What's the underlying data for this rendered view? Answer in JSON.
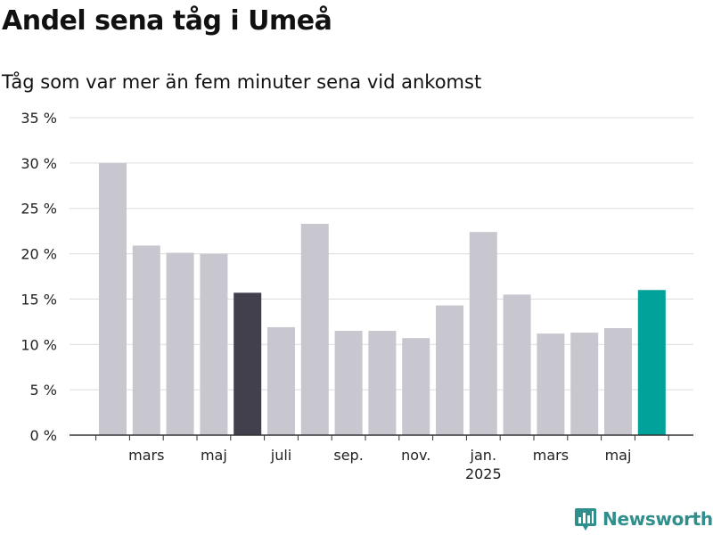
{
  "title": "Andel sena tåg i Umeå",
  "subtitle": "Tåg som var mer än fem minuter sena vid ankomst",
  "brand": {
    "name": "Newsworthy",
    "icon": "newsworthy-logo-icon",
    "color": "#2e8f8c"
  },
  "colors": {
    "default_bar": "#c8c7cf",
    "highlight_bar": "#42404c",
    "latest_bar": "#00a29a",
    "grid": "#dcdcdc",
    "axis": "#333333"
  },
  "chart_data": {
    "type": "bar",
    "title": "Andel sena tåg i Umeå",
    "subtitle": "Tåg som var mer än fem minuter sena vid ankomst",
    "xlabel": "",
    "ylabel": "",
    "ylim": [
      0,
      35
    ],
    "yticks": [
      0,
      5,
      10,
      15,
      20,
      25,
      30,
      35
    ],
    "ytick_labels": [
      "0 %",
      "5 %",
      "10 %",
      "15 %",
      "20 %",
      "25 %",
      "30 %",
      "35 %"
    ],
    "grid": true,
    "categories": [
      "2024-02",
      "2024-03",
      "2024-04",
      "2024-05",
      "2024-06",
      "2024-07",
      "2024-08",
      "2024-09",
      "2024-10",
      "2024-11",
      "2024-12",
      "2025-01",
      "2025-02",
      "2025-03",
      "2025-04",
      "2025-05",
      "2025-06"
    ],
    "values": [
      30.0,
      20.9,
      20.1,
      20.0,
      15.7,
      11.9,
      23.3,
      11.5,
      11.5,
      10.7,
      14.3,
      22.4,
      15.5,
      11.2,
      11.3,
      11.8,
      16.0
    ],
    "bar_colors": [
      "default",
      "default",
      "default",
      "default",
      "highlight",
      "default",
      "default",
      "default",
      "default",
      "default",
      "default",
      "default",
      "default",
      "default",
      "default",
      "default",
      "latest"
    ],
    "xtick_labels": [
      {
        "category": "2024-03",
        "label": "mars",
        "sublabel": ""
      },
      {
        "category": "2024-05",
        "label": "maj",
        "sublabel": ""
      },
      {
        "category": "2024-07",
        "label": "juli",
        "sublabel": ""
      },
      {
        "category": "2024-09",
        "label": "sep.",
        "sublabel": ""
      },
      {
        "category": "2024-11",
        "label": "nov.",
        "sublabel": ""
      },
      {
        "category": "2025-01",
        "label": "jan.",
        "sublabel": "2025"
      },
      {
        "category": "2025-03",
        "label": "mars",
        "sublabel": ""
      },
      {
        "category": "2025-05",
        "label": "maj",
        "sublabel": ""
      }
    ]
  }
}
